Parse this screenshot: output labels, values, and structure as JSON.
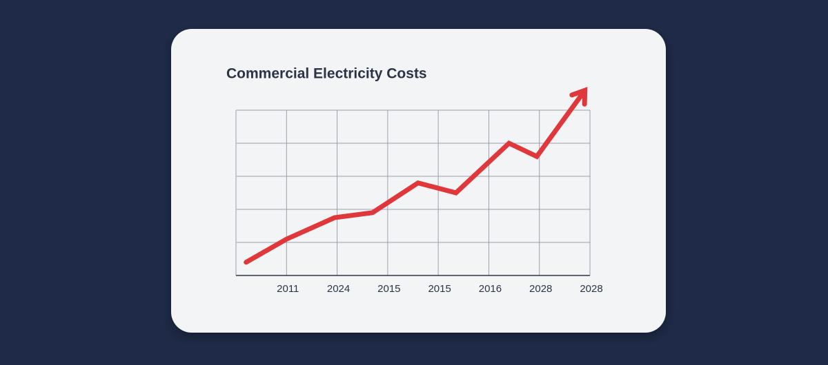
{
  "chart_data": {
    "type": "line",
    "title": "Commercial Electricity Costs",
    "xlim": [
      0,
      7
    ],
    "xticks": [
      {
        "value": 1,
        "label": "2011"
      },
      {
        "value": 2,
        "label": "2024"
      },
      {
        "value": 3,
        "label": "2015"
      },
      {
        "value": 4,
        "label": "2015"
      },
      {
        "value": 5,
        "label": "2016"
      },
      {
        "value": 6,
        "label": "2028"
      },
      {
        "value": 7,
        "label": "2028"
      }
    ],
    "ylim": [
      0,
      5
    ],
    "yticks": [
      0,
      1,
      2,
      3,
      4,
      5
    ],
    "grid": true,
    "series": [
      {
        "color": "#e0383a",
        "x": [
          0.2,
          1.0,
          1.95,
          2.7,
          3.6,
          4.35,
          5.4,
          5.95,
          6.9
        ],
        "values": [
          0.4,
          1.1,
          1.75,
          1.9,
          2.8,
          2.5,
          4.0,
          3.6,
          5.6
        ]
      }
    ]
  }
}
